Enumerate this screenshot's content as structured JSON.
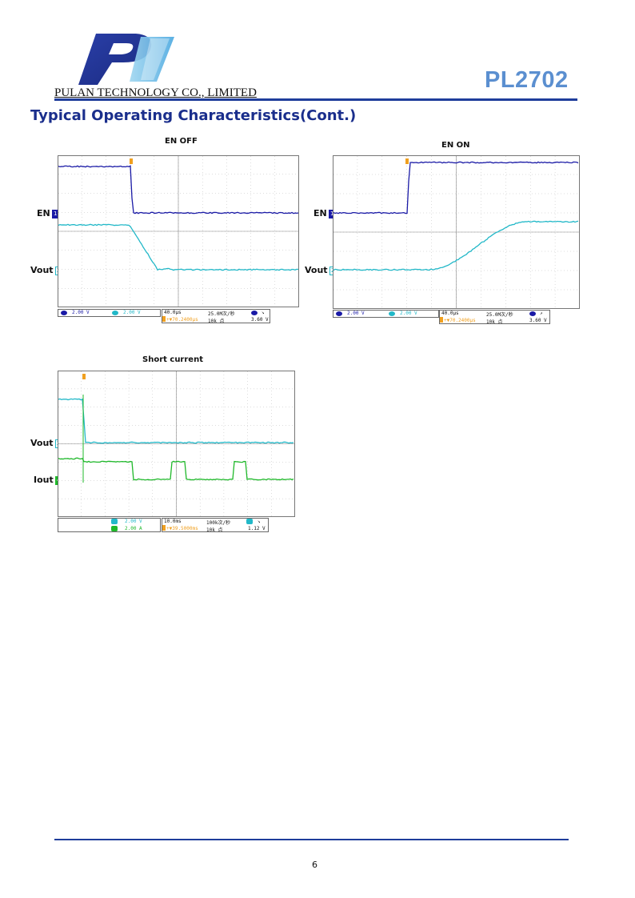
{
  "header": {
    "company": "PULAN TECHNOLOGY CO., LIMITED",
    "part_number": "PL2702",
    "logo_icon": "pulan-logo-icon",
    "accent_color": "#1f3d9b",
    "part_color": "#5b8fd0"
  },
  "section_title": "Typical Operating Characteristics(Cont.)",
  "scope_en_off": {
    "title": "EN OFF",
    "ch1_label": "EN",
    "ch2_label": "Vout",
    "ch1_scale": "2.00 V",
    "ch2_scale": "2.00 V",
    "timebase": "40.0μs",
    "sample_rate": "25.0M次/秒",
    "delay": "+▼70.2400μs",
    "points": "10k 点",
    "trigger_level": "3.60 V"
  },
  "scope_en_on": {
    "title": "EN ON",
    "ch1_label": "EN",
    "ch2_label": "Vout",
    "ch1_scale": "2.00 V",
    "ch2_scale": "2.00 V",
    "timebase": "40.0μs",
    "sample_rate": "25.0M次/秒",
    "delay": "+▼70.2400μs",
    "points": "10k 点",
    "trigger_level": "3.60 V"
  },
  "scope_short": {
    "title": "Short current",
    "ch2_label": "Vout",
    "ch4_label": "Iout",
    "ch2_scale": "2.00 V",
    "ch4_scale": "2.00 A",
    "timebase": "10.0ms",
    "sample_rate": "100k次/秒",
    "delay": "+▼39.5000ms",
    "points": "10k 点",
    "trigger_level": "1.12 V"
  },
  "colors": {
    "ch1": "#1a1aa6",
    "ch2": "#22b8c8",
    "ch4": "#1fb82a",
    "trigger": "#f0a020"
  },
  "footer": {
    "page_number": "6"
  }
}
